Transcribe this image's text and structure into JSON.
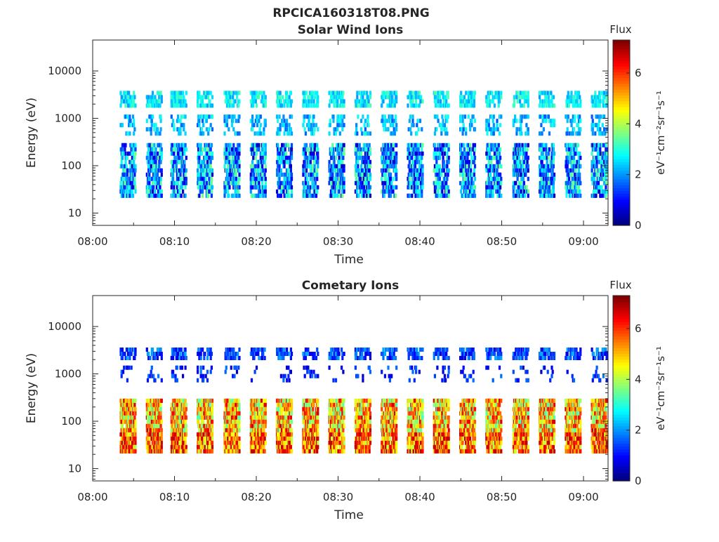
{
  "figure_title": "RPCICA160318T08.PNG",
  "chart_data": [
    {
      "type": "heatmap",
      "title": "Solar Wind Ions",
      "xlabel": "Time",
      "ylabel": "Energy (eV)",
      "x_ticks": [
        "08:00",
        "08:10",
        "08:20",
        "08:30",
        "08:40",
        "08:50",
        "09:00"
      ],
      "x_range_minutes": [
        0,
        63
      ],
      "y_scale": "log",
      "y_ticks": [
        "10",
        "100",
        "1000",
        "10000"
      ],
      "y_range": [
        5.5,
        45000
      ],
      "colorbar": {
        "label": "Flux",
        "units": "eV⁻¹cm⁻²sr⁻¹s⁻¹",
        "ticks": [
          "0",
          "2",
          "4",
          "6"
        ],
        "range": [
          0,
          7.3
        ],
        "colormap": "jet"
      },
      "sweep_start_minutes": [
        3.3,
        6.5,
        9.5,
        12.7,
        16.0,
        19.2,
        22.4,
        25.6,
        28.8,
        32.0,
        35.2,
        38.4,
        41.6,
        44.8,
        48.0,
        51.3,
        54.5,
        57.7,
        60.9
      ],
      "bands": [
        {
          "e_min": 25,
          "e_max": 300,
          "level_min": 0.4,
          "level_max": 3.6,
          "density": 0.55
        },
        {
          "e_min": 500,
          "e_max": 1200,
          "level_min": 1.5,
          "level_max": 3.0,
          "density": 0.28
        },
        {
          "e_min": 2000,
          "e_max": 3800,
          "level_min": 2.0,
          "level_max": 3.3,
          "density": 0.5
        }
      ]
    },
    {
      "type": "heatmap",
      "title": "Cometary Ions",
      "xlabel": "Time",
      "ylabel": "Energy (eV)",
      "x_ticks": [
        "08:00",
        "08:10",
        "08:20",
        "08:30",
        "08:40",
        "08:50",
        "09:00"
      ],
      "x_range_minutes": [
        0,
        63
      ],
      "y_scale": "log",
      "y_ticks": [
        "10",
        "100",
        "1000",
        "10000"
      ],
      "y_range": [
        5.5,
        45000
      ],
      "colorbar": {
        "label": "Flux",
        "units": "eV⁻¹cm⁻²sr⁻¹s⁻¹",
        "ticks": [
          "0",
          "2",
          "4",
          "6"
        ],
        "range": [
          0,
          7.3
        ],
        "colormap": "jet"
      },
      "sweep_start_minutes": [
        3.3,
        6.5,
        9.5,
        12.7,
        16.0,
        19.2,
        22.4,
        25.6,
        28.8,
        32.0,
        35.2,
        38.4,
        41.6,
        44.8,
        48.0,
        51.3,
        54.5,
        57.7,
        60.9
      ],
      "bands": [
        {
          "e_min": 25,
          "e_max": 300,
          "level_min": 3.2,
          "level_max": 6.8,
          "density": 0.8
        },
        {
          "e_min": 800,
          "e_max": 1500,
          "level_min": 0.5,
          "level_max": 1.8,
          "density": 0.12
        },
        {
          "e_min": 2200,
          "e_max": 3600,
          "level_min": 0.6,
          "level_max": 2.2,
          "density": 0.5
        }
      ]
    }
  ]
}
